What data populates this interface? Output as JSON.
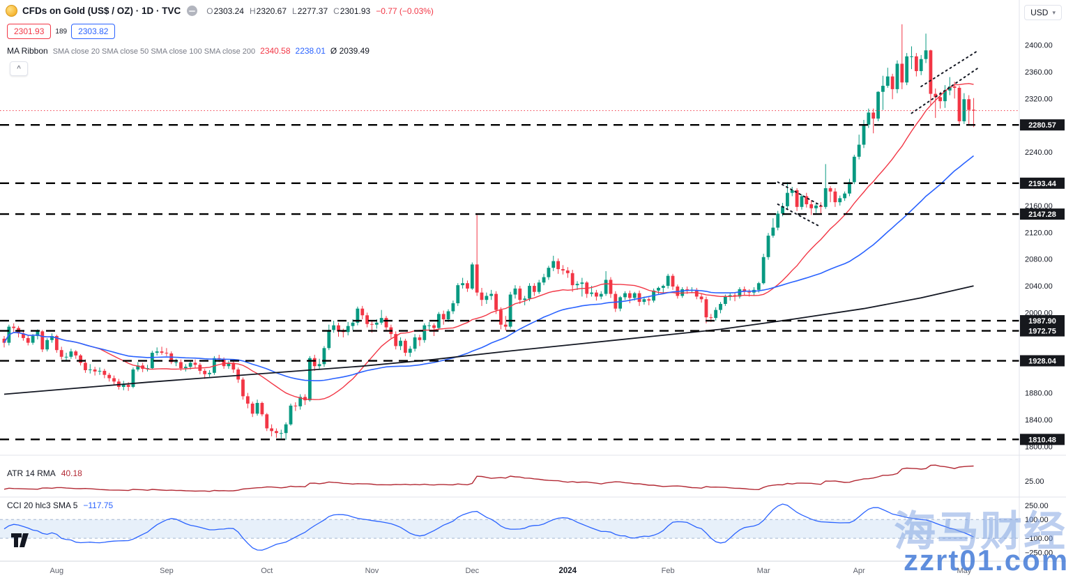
{
  "header": {
    "symbol_title": "CFDs on Gold (US$ / OZ) · 1D · TVC",
    "ohlc": {
      "o_label": "O",
      "o": "2303.24",
      "h_label": "H",
      "h": "2320.67",
      "l_label": "L",
      "l": "2277.37",
      "c_label": "C",
      "c": "2301.93",
      "change": "−0.77 (−0.03%)"
    },
    "sell_price": "2301.93",
    "spread": "189",
    "buy_price": "2303.82",
    "ma": {
      "name": "MA Ribbon",
      "params": "SMA close 20 SMA close 50 SMA close 100 SMA close 200",
      "v20": "2340.58",
      "v50": "2238.01",
      "avg": "Ø 2039.49"
    },
    "currency": "USD"
  },
  "icons": {
    "collapse": "^",
    "caret_down": "▾"
  },
  "panes": {
    "atr": {
      "title": "ATR 14 RMA",
      "value": "40.18"
    },
    "cci": {
      "title": "CCI 20 hlc3 SMA 5",
      "value": "−117.75"
    }
  },
  "watermark": {
    "line1": "海马财经",
    "line2": "zzrt01.com"
  },
  "time_axis": {
    "labels": [
      {
        "text": "Aug",
        "bar": 11
      },
      {
        "text": "Sep",
        "bar": 34
      },
      {
        "text": "Oct",
        "bar": 55
      },
      {
        "text": "Nov",
        "bar": 77
      },
      {
        "text": "Dec",
        "bar": 98
      },
      {
        "text": "2024",
        "bar": 118,
        "bold": true
      },
      {
        "text": "Feb",
        "bar": 139
      },
      {
        "text": "Mar",
        "bar": 159
      },
      {
        "text": "Apr",
        "bar": 179
      },
      {
        "text": "May",
        "bar": 201
      }
    ]
  },
  "chart_data": {
    "type": "candlestick",
    "title": "CFDs on Gold (US$ / OZ) 1D TVC",
    "timeframe": "1D",
    "price_axis": {
      "min": 1790,
      "max": 2436,
      "ticks": [
        2400,
        2360,
        2320,
        2240,
        2160,
        2120,
        2080,
        2040,
        2000,
        1880,
        1840,
        1800
      ]
    },
    "levels": [
      2280.57,
      2193.44,
      2147.28,
      1987.9,
      1972.75,
      1928.04,
      1810.48
    ],
    "current_price": 2301.93,
    "indicators": {
      "atr": {
        "period": 14,
        "method": "RMA",
        "last": 40.18,
        "axis": [
          25
        ]
      },
      "cci": {
        "period": 20,
        "source": "hlc3",
        "smoothing": 5,
        "last": -117.75,
        "band": [
          100,
          -100
        ],
        "axis": [
          250,
          100,
          -100,
          -250
        ]
      }
    },
    "sma200_points": [
      [
        0,
        1878
      ],
      [
        15,
        1887
      ],
      [
        30,
        1896
      ],
      [
        45,
        1904
      ],
      [
        60,
        1912
      ],
      [
        75,
        1920
      ],
      [
        90,
        1930
      ],
      [
        105,
        1942
      ],
      [
        120,
        1953
      ],
      [
        135,
        1964
      ],
      [
        150,
        1975
      ],
      [
        165,
        1990
      ],
      [
        180,
        2006
      ],
      [
        192,
        2022
      ],
      [
        203,
        2040
      ]
    ],
    "annotations": [
      {
        "from": [
          162,
          2195
        ],
        "to": [
          171,
          2160
        ]
      },
      {
        "from": [
          162,
          2162
        ],
        "to": [
          171,
          2128
        ]
      },
      {
        "from": [
          190,
          2298
        ],
        "to": [
          204,
          2366
        ]
      },
      {
        "from": [
          192,
          2338
        ],
        "to": [
          204,
          2392
        ]
      }
    ],
    "colors": {
      "up": "#089981",
      "down": "#f23645",
      "sma20": "#f23645",
      "sma50": "#2962ff",
      "sma200": "#131722",
      "level": "#000000",
      "price_line": "#f23645",
      "atr": "#b22833",
      "cci": "#2962ff",
      "cci_band": "#e7f0fa"
    },
    "candles": [
      [
        1961,
        1965,
        1948,
        1955
      ],
      [
        1955,
        1982,
        1951,
        1979
      ],
      [
        1979,
        1984,
        1971,
        1977
      ],
      [
        1977,
        1980,
        1963,
        1969
      ],
      [
        1969,
        1973,
        1958,
        1962
      ],
      [
        1962,
        1966,
        1951,
        1955
      ],
      [
        1955,
        1968,
        1952,
        1965
      ],
      [
        1965,
        1975,
        1960,
        1972
      ],
      [
        1972,
        1974,
        1941,
        1945
      ],
      [
        1945,
        1962,
        1942,
        1959
      ],
      [
        1959,
        1969,
        1955,
        1965
      ],
      [
        1965,
        1967,
        1940,
        1944
      ],
      [
        1944,
        1949,
        1930,
        1934
      ],
      [
        1934,
        1940,
        1928,
        1934
      ],
      [
        1934,
        1946,
        1931,
        1942
      ],
      [
        1942,
        1944,
        1931,
        1936
      ],
      [
        1936,
        1938,
        1921,
        1925
      ],
      [
        1925,
        1930,
        1910,
        1914
      ],
      [
        1914,
        1923,
        1909,
        1915
      ],
      [
        1915,
        1919,
        1906,
        1912
      ],
      [
        1912,
        1918,
        1907,
        1913
      ],
      [
        1913,
        1916,
        1902,
        1907
      ],
      [
        1907,
        1910,
        1897,
        1902
      ],
      [
        1902,
        1906,
        1892,
        1897
      ],
      [
        1897,
        1901,
        1885,
        1889
      ],
      [
        1889,
        1898,
        1884,
        1892
      ],
      [
        1892,
        1896,
        1883,
        1889
      ],
      [
        1889,
        1918,
        1887,
        1915
      ],
      [
        1915,
        1926,
        1912,
        1921
      ],
      [
        1921,
        1925,
        1911,
        1916
      ],
      [
        1916,
        1922,
        1912,
        1917
      ],
      [
        1917,
        1943,
        1915,
        1940
      ],
      [
        1940,
        1948,
        1936,
        1942
      ],
      [
        1942,
        1949,
        1937,
        1940
      ],
      [
        1940,
        1947,
        1935,
        1939
      ],
      [
        1939,
        1942,
        1923,
        1926
      ],
      [
        1926,
        1931,
        1920,
        1926
      ],
      [
        1926,
        1930,
        1913,
        1917
      ],
      [
        1917,
        1923,
        1912,
        1919
      ],
      [
        1919,
        1928,
        1915,
        1925
      ],
      [
        1925,
        1930,
        1917,
        1922
      ],
      [
        1922,
        1925,
        1908,
        1913
      ],
      [
        1913,
        1916,
        1901,
        1908
      ],
      [
        1908,
        1914,
        1904,
        1910
      ],
      [
        1910,
        1935,
        1907,
        1932
      ],
      [
        1932,
        1937,
        1926,
        1930
      ],
      [
        1930,
        1933,
        1916,
        1920
      ],
      [
        1920,
        1928,
        1916,
        1925
      ],
      [
        1925,
        1927,
        1910,
        1915
      ],
      [
        1915,
        1918,
        1895,
        1900
      ],
      [
        1900,
        1903,
        1870,
        1875
      ],
      [
        1875,
        1880,
        1857,
        1864
      ],
      [
        1864,
        1867,
        1844,
        1849
      ],
      [
        1849,
        1870,
        1846,
        1865
      ],
      [
        1865,
        1867,
        1845,
        1848
      ],
      [
        1848,
        1850,
        1823,
        1827
      ],
      [
        1827,
        1833,
        1815,
        1823
      ],
      [
        1823,
        1827,
        1813,
        1820
      ],
      [
        1820,
        1825,
        1812,
        1820
      ],
      [
        1820,
        1836,
        1810,
        1833
      ],
      [
        1833,
        1864,
        1831,
        1861
      ],
      [
        1861,
        1866,
        1853,
        1860
      ],
      [
        1860,
        1878,
        1855,
        1874
      ],
      [
        1874,
        1878,
        1862,
        1869
      ],
      [
        1869,
        1935,
        1867,
        1932
      ],
      [
        1932,
        1937,
        1913,
        1920
      ],
      [
        1920,
        1931,
        1915,
        1923
      ],
      [
        1923,
        1950,
        1919,
        1947
      ],
      [
        1947,
        1982,
        1944,
        1974
      ],
      [
        1974,
        1988,
        1970,
        1981
      ],
      [
        1981,
        1985,
        1964,
        1972
      ],
      [
        1972,
        1976,
        1963,
        1971
      ],
      [
        1971,
        1986,
        1966,
        1980
      ],
      [
        1980,
        1990,
        1974,
        1985
      ],
      [
        1985,
        2009,
        1981,
        2006
      ],
      [
        2006,
        2010,
        1990,
        1996
      ],
      [
        1996,
        2000,
        1978,
        1983
      ],
      [
        1983,
        1988,
        1970,
        1982
      ],
      [
        1982,
        1990,
        1976,
        1985
      ],
      [
        1985,
        2004,
        1982,
        1992
      ],
      [
        1992,
        1995,
        1974,
        1978
      ],
      [
        1978,
        1982,
        1962,
        1968
      ],
      [
        1968,
        1972,
        1945,
        1950
      ],
      [
        1950,
        1963,
        1944,
        1958
      ],
      [
        1958,
        1961,
        1935,
        1940
      ],
      [
        1940,
        1950,
        1934,
        1946
      ],
      [
        1946,
        1968,
        1942,
        1963
      ],
      [
        1963,
        1967,
        1950,
        1959
      ],
      [
        1959,
        1984,
        1955,
        1981
      ],
      [
        1981,
        1986,
        1972,
        1981
      ],
      [
        1981,
        1984,
        1965,
        1977
      ],
      [
        1977,
        2001,
        1974,
        1998
      ],
      [
        1998,
        2003,
        1982,
        1990
      ],
      [
        1990,
        2005,
        1986,
        2002
      ],
      [
        2002,
        2018,
        1998,
        2014
      ],
      [
        2014,
        2044,
        2010,
        2041
      ],
      [
        2041,
        2052,
        2036,
        2044
      ],
      [
        2044,
        2048,
        2031,
        2036
      ],
      [
        2036,
        2075,
        2034,
        2072
      ],
      [
        2072,
        2146,
        2025,
        2030
      ],
      [
        2030,
        2037,
        2010,
        2019
      ],
      [
        2019,
        2030,
        2013,
        2025
      ],
      [
        2025,
        2034,
        2019,
        2028
      ],
      [
        2028,
        2032,
        1998,
        2004
      ],
      [
        2004,
        2008,
        1975,
        1982
      ],
      [
        1982,
        1995,
        1973,
        1979
      ],
      [
        1979,
        2031,
        1976,
        2027
      ],
      [
        2027,
        2041,
        2021,
        2036
      ],
      [
        2036,
        2040,
        2013,
        2019
      ],
      [
        2019,
        2025,
        2011,
        2021
      ],
      [
        2021,
        2044,
        2017,
        2040
      ],
      [
        2040,
        2044,
        2025,
        2031
      ],
      [
        2031,
        2049,
        2028,
        2045
      ],
      [
        2045,
        2058,
        2041,
        2053
      ],
      [
        2053,
        2070,
        2049,
        2067
      ],
      [
        2067,
        2085,
        2062,
        2077
      ],
      [
        2077,
        2081,
        2058,
        2065
      ],
      [
        2065,
        2071,
        2057,
        2063
      ],
      [
        2063,
        2068,
        2052,
        2059
      ],
      [
        2059,
        2064,
        2031,
        2041
      ],
      [
        2041,
        2047,
        2034,
        2043
      ],
      [
        2043,
        2052,
        2024,
        2045
      ],
      [
        2045,
        2047,
        2022,
        2028
      ],
      [
        2028,
        2040,
        2024,
        2030
      ],
      [
        2030,
        2034,
        2018,
        2024
      ],
      [
        2024,
        2032,
        2020,
        2028
      ],
      [
        2028,
        2062,
        2025,
        2049
      ],
      [
        2049,
        2053,
        2022,
        2028
      ],
      [
        2028,
        2032,
        2001,
        2006
      ],
      [
        2006,
        2025,
        2002,
        2023
      ],
      [
        2023,
        2032,
        2019,
        2029
      ],
      [
        2029,
        2033,
        2014,
        2022
      ],
      [
        2022,
        2031,
        2018,
        2029
      ],
      [
        2029,
        2033,
        2010,
        2016
      ],
      [
        2016,
        2024,
        2012,
        2020
      ],
      [
        2020,
        2023,
        2011,
        2018
      ],
      [
        2018,
        2036,
        2015,
        2033
      ],
      [
        2033,
        2039,
        2028,
        2037
      ],
      [
        2037,
        2042,
        2030,
        2040
      ],
      [
        2040,
        2058,
        2036,
        2055
      ],
      [
        2055,
        2058,
        2034,
        2039
      ],
      [
        2039,
        2042,
        2021,
        2025
      ],
      [
        2025,
        2038,
        2022,
        2035
      ],
      [
        2035,
        2039,
        2028,
        2034
      ],
      [
        2034,
        2038,
        2029,
        2034
      ],
      [
        2034,
        2037,
        2020,
        2024
      ],
      [
        2024,
        2028,
        2015,
        2020
      ],
      [
        2020,
        2024,
        1984,
        1993
      ],
      [
        1993,
        1998,
        1986,
        1992
      ],
      [
        1992,
        2008,
        1988,
        2004
      ],
      [
        2004,
        2016,
        1999,
        2013
      ],
      [
        2013,
        2027,
        2010,
        2024
      ],
      [
        2024,
        2030,
        2018,
        2026
      ],
      [
        2026,
        2030,
        2017,
        2024
      ],
      [
        2024,
        2038,
        2021,
        2035
      ],
      [
        2035,
        2039,
        2026,
        2031
      ],
      [
        2031,
        2035,
        2024,
        2030
      ],
      [
        2030,
        2038,
        2026,
        2034
      ],
      [
        2034,
        2046,
        2030,
        2044
      ],
      [
        2044,
        2088,
        2042,
        2083
      ],
      [
        2083,
        2119,
        2079,
        2115
      ],
      [
        2115,
        2141,
        2112,
        2127
      ],
      [
        2127,
        2152,
        2123,
        2148
      ],
      [
        2148,
        2164,
        2144,
        2159
      ],
      [
        2159,
        2195,
        2154,
        2179
      ],
      [
        2179,
        2188,
        2174,
        2183
      ],
      [
        2183,
        2186,
        2152,
        2158
      ],
      [
        2158,
        2177,
        2154,
        2174
      ],
      [
        2174,
        2179,
        2157,
        2162
      ],
      [
        2162,
        2168,
        2146,
        2156
      ],
      [
        2156,
        2163,
        2149,
        2160
      ],
      [
        2160,
        2165,
        2148,
        2158
      ],
      [
        2158,
        2222,
        2155,
        2186
      ],
      [
        2186,
        2189,
        2165,
        2181
      ],
      [
        2181,
        2186,
        2158,
        2165
      ],
      [
        2165,
        2175,
        2160,
        2171
      ],
      [
        2171,
        2181,
        2167,
        2178
      ],
      [
        2178,
        2200,
        2174,
        2195
      ],
      [
        2195,
        2236,
        2192,
        2233
      ],
      [
        2233,
        2266,
        2229,
        2251
      ],
      [
        2251,
        2288,
        2246,
        2281
      ],
      [
        2281,
        2305,
        2276,
        2299
      ],
      [
        2299,
        2305,
        2268,
        2290
      ],
      [
        2290,
        2331,
        2286,
        2330
      ],
      [
        2330,
        2354,
        2303,
        2339
      ],
      [
        2339,
        2366,
        2336,
        2353
      ],
      [
        2353,
        2357,
        2319,
        2334
      ],
      [
        2334,
        2377,
        2328,
        2372
      ],
      [
        2372,
        2431,
        2334,
        2344
      ],
      [
        2344,
        2388,
        2340,
        2383
      ],
      [
        2383,
        2398,
        2364,
        2383
      ],
      [
        2383,
        2388,
        2353,
        2361
      ],
      [
        2361,
        2385,
        2355,
        2379
      ],
      [
        2379,
        2417,
        2373,
        2392
      ],
      [
        2392,
        2393,
        2310,
        2327
      ],
      [
        2327,
        2335,
        2291,
        2322
      ],
      [
        2322,
        2330,
        2305,
        2316
      ],
      [
        2316,
        2340,
        2306,
        2332
      ],
      [
        2332,
        2352,
        2325,
        2338
      ],
      [
        2338,
        2345,
        2320,
        2336
      ],
      [
        2336,
        2339,
        2281,
        2286
      ],
      [
        2286,
        2328,
        2282,
        2319
      ],
      [
        2319,
        2325,
        2281,
        2303
      ],
      [
        2303.24,
        2320.67,
        2277.37,
        2301.93
      ]
    ]
  }
}
